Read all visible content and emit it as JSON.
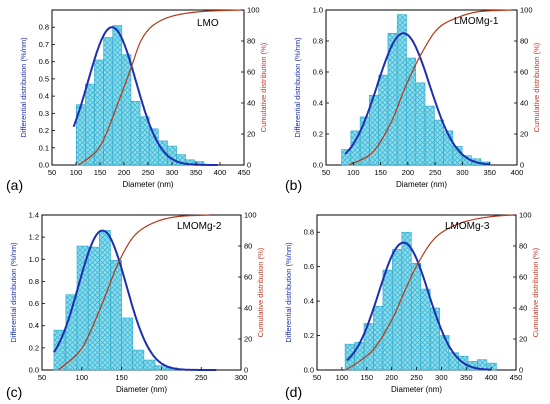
{
  "colors": {
    "bar_fill": "#8fdcec",
    "bar_hatch": "#3fb8d6",
    "bar_stroke": "#2aa7c9",
    "fit_curve": "#1c2fb0",
    "cumulative_curve": "#b23a18",
    "left_axis_label": "#1c2fb0",
    "right_axis_label": "#c0392b"
  },
  "chart_data": [
    {
      "type": "bar",
      "panel_label": "(a)",
      "sample": "LMO",
      "xlabel": "Diameter (nm)",
      "ylabel": "Differential distribution (%/nm)",
      "y2label": "Cumulative distribution (%)",
      "xlim": [
        50,
        450
      ],
      "xticks": [
        "50",
        "100",
        "150",
        "200",
        "250",
        "300",
        "350",
        "400",
        "450"
      ],
      "ylim": [
        0,
        0.9
      ],
      "yticks": [
        "0.0",
        "0.1",
        "0.2",
        "0.3",
        "0.4",
        "0.5",
        "0.6",
        "0.7",
        "0.8"
      ],
      "y2lim": [
        0,
        100
      ],
      "y2ticks": [
        "0",
        "20",
        "40",
        "60",
        "80",
        "100"
      ],
      "bin_width": 19,
      "bin_centers": [
        110,
        129,
        148,
        167,
        186,
        205,
        224,
        243,
        262,
        281,
        300,
        319,
        338,
        357
      ],
      "values": [
        0.35,
        0.47,
        0.61,
        0.74,
        0.81,
        0.64,
        0.37,
        0.28,
        0.21,
        0.14,
        0.11,
        0.06,
        0.03,
        0.02
      ],
      "fit": {
        "center": 175,
        "sigma": 50,
        "peak": 0.8,
        "x_start": 95,
        "x_end": 395
      },
      "cumulative": [
        [
          105,
          0
        ],
        [
          150,
          12
        ],
        [
          190,
          42
        ],
        [
          215,
          63
        ],
        [
          235,
          80
        ],
        [
          260,
          90
        ],
        [
          300,
          96
        ],
        [
          360,
          99
        ],
        [
          445,
          100
        ]
      ]
    },
    {
      "type": "bar",
      "panel_label": "(b)",
      "sample": "LMOMg-1",
      "xlabel": "Diameter (nm)",
      "ylabel": "Differential distribution (%/nm)",
      "y2label": "Cumulative distribution (%)",
      "xlim": [
        50,
        400
      ],
      "xticks": [
        "50",
        "100",
        "150",
        "200",
        "250",
        "300",
        "350",
        "400"
      ],
      "ylim": [
        0,
        1.0
      ],
      "yticks": [
        "0.0",
        "0.2",
        "0.4",
        "0.6",
        "0.8",
        "1.0"
      ],
      "y2lim": [
        0,
        100
      ],
      "y2ticks": [
        "0",
        "20",
        "40",
        "60",
        "80",
        "100"
      ],
      "bin_width": 17,
      "bin_centers": [
        87,
        104,
        121,
        138,
        155,
        172,
        189,
        206,
        223,
        240,
        257,
        274,
        291,
        308,
        325,
        342
      ],
      "values": [
        0.1,
        0.22,
        0.31,
        0.45,
        0.58,
        0.85,
        0.97,
        0.69,
        0.53,
        0.38,
        0.29,
        0.22,
        0.12,
        0.06,
        0.04,
        0.02
      ],
      "fit": {
        "center": 192,
        "sigma": 48,
        "peak": 0.85,
        "x_start": 85,
        "x_end": 350
      },
      "cumulative": [
        [
          92,
          0
        ],
        [
          135,
          8
        ],
        [
          170,
          28
        ],
        [
          195,
          50
        ],
        [
          225,
          72
        ],
        [
          255,
          88
        ],
        [
          290,
          95
        ],
        [
          330,
          99
        ],
        [
          390,
          100
        ]
      ]
    },
    {
      "type": "bar",
      "panel_label": "(c)",
      "sample": "LMOMg-2",
      "xlabel": "Diameter (nm)",
      "ylabel": "Differential distribution (%/nm)",
      "y2label": "Cumulative distribution (%)",
      "xlim": [
        50,
        300
      ],
      "xticks": [
        "50",
        "100",
        "150",
        "200",
        "250",
        "300"
      ],
      "ylim": [
        0,
        1.4
      ],
      "yticks": [
        "0.0",
        "0.2",
        "0.4",
        "0.6",
        "0.8",
        "1.0",
        "1.2",
        "1.4"
      ],
      "y2lim": [
        0,
        100
      ],
      "y2ticks": [
        "0",
        "20",
        "40",
        "60",
        "80",
        "100"
      ],
      "bin_width": 14,
      "bin_centers": [
        72,
        87,
        101,
        115,
        129,
        143,
        157,
        171,
        185,
        199,
        213
      ],
      "values": [
        0.36,
        0.68,
        1.12,
        1.11,
        1.26,
        0.99,
        0.47,
        0.18,
        0.09,
        0.04,
        0.02
      ],
      "fit": {
        "center": 126,
        "sigma": 30,
        "peak": 1.26,
        "x_start": 65,
        "x_end": 270
      },
      "cumulative": [
        [
          70,
          0
        ],
        [
          100,
          14
        ],
        [
          125,
          42
        ],
        [
          145,
          68
        ],
        [
          165,
          86
        ],
        [
          190,
          95
        ],
        [
          220,
          99
        ],
        [
          260,
          100
        ]
      ]
    },
    {
      "type": "bar",
      "panel_label": "(d)",
      "sample": "LMOMg-3",
      "xlabel": "Diameter (nm)",
      "ylabel": "Differential distribution (%/nm)",
      "y2label": "Cumulative distribution (%)",
      "xlim": [
        50,
        450
      ],
      "xticks": [
        "50",
        "100",
        "150",
        "200",
        "250",
        "300",
        "350",
        "400",
        "450"
      ],
      "ylim": [
        0,
        0.9
      ],
      "yticks": [
        "0.0",
        "0.2",
        "0.4",
        "0.6",
        "0.8"
      ],
      "y2lim": [
        0,
        100
      ],
      "y2ticks": [
        "0",
        "20",
        "40",
        "60",
        "80",
        "100"
      ],
      "bin_width": 19,
      "bin_centers": [
        116,
        135,
        154,
        173,
        192,
        211,
        230,
        249,
        268,
        287,
        306,
        325,
        344,
        363,
        382,
        401
      ],
      "values": [
        0.15,
        0.16,
        0.27,
        0.37,
        0.58,
        0.7,
        0.8,
        0.62,
        0.47,
        0.36,
        0.2,
        0.1,
        0.08,
        0.05,
        0.06,
        0.04
      ],
      "fit": {
        "center": 224,
        "sigma": 50,
        "peak": 0.74,
        "x_start": 110,
        "x_end": 400
      },
      "cumulative": [
        [
          108,
          0
        ],
        [
          160,
          12
        ],
        [
          200,
          32
        ],
        [
          225,
          50
        ],
        [
          255,
          70
        ],
        [
          290,
          86
        ],
        [
          340,
          95
        ],
        [
          400,
          99
        ],
        [
          445,
          100
        ]
      ]
    }
  ]
}
